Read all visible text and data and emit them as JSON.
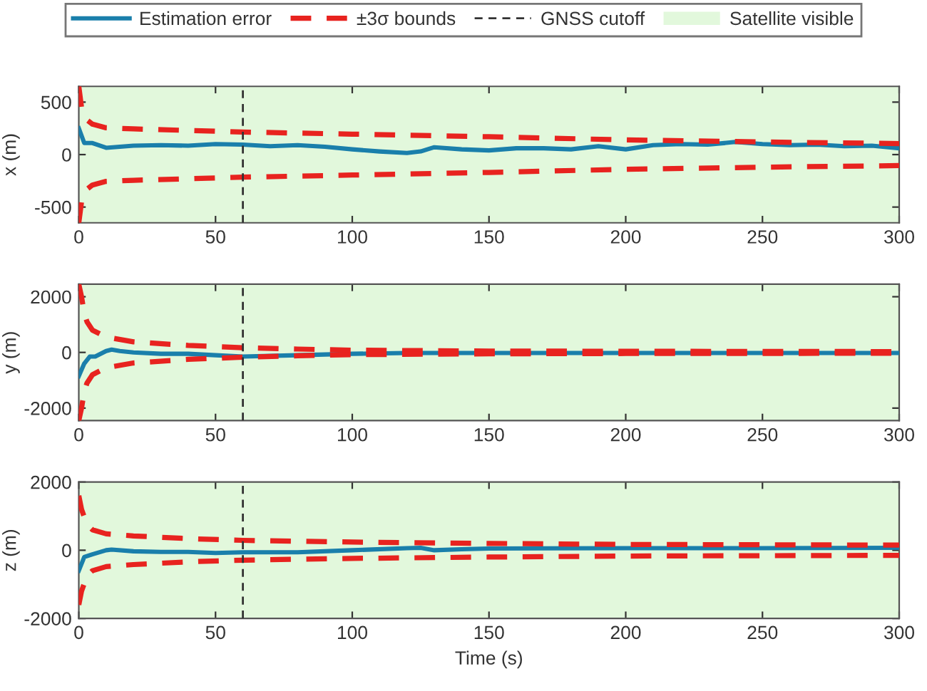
{
  "chart_data": [
    {
      "type": "line",
      "ylabel": "x (m)",
      "xlim": [
        0,
        300
      ],
      "xticks": [
        0,
        50,
        100,
        150,
        200,
        250,
        300
      ],
      "ylim": [
        -650,
        650
      ],
      "yticks": [
        -500,
        0,
        500
      ],
      "legend": "top",
      "series": [
        {
          "name": "Estimation error",
          "color": "#1a7fab",
          "line_style": "solid",
          "x": [
            0,
            2,
            5,
            10,
            20,
            30,
            40,
            50,
            60,
            70,
            80,
            90,
            100,
            110,
            120,
            125,
            130,
            140,
            150,
            160,
            170,
            180,
            190,
            200,
            210,
            220,
            230,
            240,
            250,
            260,
            270,
            280,
            290,
            300
          ],
          "values": [
            250,
            110,
            110,
            65,
            85,
            90,
            85,
            100,
            95,
            80,
            90,
            75,
            50,
            30,
            15,
            30,
            70,
            50,
            40,
            60,
            60,
            50,
            80,
            50,
            90,
            100,
            95,
            120,
            100,
            90,
            95,
            80,
            85,
            60
          ]
        },
        {
          "name": "±3σ bounds",
          "color": "#e8231f",
          "line_style": "dashed",
          "x": [
            0,
            1,
            3,
            5,
            10,
            20,
            40,
            60,
            100,
            150,
            200,
            250,
            300
          ],
          "values": [
            650,
            450,
            330,
            290,
            255,
            245,
            230,
            215,
            195,
            170,
            140,
            120,
            105
          ]
        },
        {
          "color": "#e8231f",
          "line_style": "dashed",
          "x": [
            0,
            1,
            3,
            5,
            10,
            20,
            40,
            60,
            100,
            150,
            200,
            250,
            300
          ],
          "values": [
            -650,
            -450,
            -330,
            -290,
            -255,
            -245,
            -230,
            -215,
            -195,
            -170,
            -140,
            -120,
            -105
          ]
        }
      ],
      "ref_lines": [
        {
          "axis": "x",
          "value": 60,
          "label": "GNSS cutoff",
          "color": "#333333",
          "line_style": "dashed"
        }
      ],
      "bands": [
        {
          "axis": "x",
          "from": 0,
          "to": 300,
          "label": "Satellite visible",
          "color": "#e2f8dc"
        }
      ]
    },
    {
      "type": "line",
      "ylabel": "y (m)",
      "xlim": [
        0,
        300
      ],
      "xticks": [
        0,
        50,
        100,
        150,
        200,
        250,
        300
      ],
      "ylim": [
        -2450,
        2450
      ],
      "yticks": [
        -2000,
        0,
        2000
      ],
      "series": [
        {
          "color": "#1a7fab",
          "line_style": "solid",
          "x": [
            0,
            2,
            4,
            6,
            10,
            12,
            15,
            20,
            30,
            40,
            50,
            60,
            80,
            100,
            120,
            150,
            200,
            250,
            300
          ],
          "values": [
            -850,
            -400,
            -150,
            -150,
            50,
            100,
            50,
            0,
            -50,
            -50,
            -100,
            -150,
            -100,
            -50,
            -20,
            -20,
            -20,
            -20,
            -20
          ]
        },
        {
          "color": "#e8231f",
          "line_style": "dashed",
          "x": [
            0,
            1,
            2,
            3,
            5,
            10,
            20,
            40,
            60,
            80,
            100,
            150,
            200,
            300
          ],
          "values": [
            2450,
            2000,
            1400,
            1100,
            800,
            550,
            380,
            250,
            170,
            120,
            80,
            50,
            40,
            30
          ]
        },
        {
          "color": "#e8231f",
          "line_style": "dashed",
          "x": [
            0,
            1,
            2,
            3,
            5,
            10,
            20,
            40,
            60,
            80,
            100,
            150,
            200,
            300
          ],
          "values": [
            -2450,
            -2000,
            -1400,
            -1100,
            -800,
            -550,
            -380,
            -250,
            -170,
            -120,
            -80,
            -50,
            -40,
            -30
          ]
        }
      ],
      "ref_lines": [
        {
          "axis": "x",
          "value": 60,
          "color": "#333333",
          "line_style": "dashed"
        }
      ],
      "bands": [
        {
          "axis": "x",
          "from": 0,
          "to": 300,
          "color": "#e2f8dc"
        }
      ]
    },
    {
      "type": "line",
      "ylabel": "z (m)",
      "xlabel": "Time (s)",
      "xlim": [
        0,
        300
      ],
      "xticks": [
        0,
        50,
        100,
        150,
        200,
        250,
        300
      ],
      "ylim": [
        -2000,
        2000
      ],
      "yticks": [
        -2000,
        0,
        2000
      ],
      "series": [
        {
          "color": "#1a7fab",
          "line_style": "solid",
          "x": [
            0,
            2,
            5,
            10,
            12,
            20,
            30,
            40,
            50,
            60,
            80,
            100,
            120,
            125,
            130,
            140,
            150,
            200,
            250,
            300
          ],
          "values": [
            -600,
            -200,
            -120,
            0,
            20,
            -30,
            -50,
            -50,
            -80,
            -60,
            -60,
            0,
            60,
            70,
            0,
            30,
            50,
            60,
            60,
            70
          ]
        },
        {
          "color": "#e8231f",
          "line_style": "dashed",
          "x": [
            0,
            1,
            3,
            5,
            10,
            20,
            40,
            60,
            100,
            150,
            200,
            300
          ],
          "values": [
            1600,
            1200,
            750,
            600,
            480,
            420,
            340,
            290,
            240,
            200,
            170,
            150
          ]
        },
        {
          "color": "#e8231f",
          "line_style": "dashed",
          "x": [
            0,
            1,
            3,
            5,
            10,
            20,
            40,
            60,
            100,
            150,
            200,
            300
          ],
          "values": [
            -1600,
            -1200,
            -750,
            -600,
            -480,
            -420,
            -340,
            -290,
            -240,
            -200,
            -170,
            -150
          ]
        }
      ],
      "ref_lines": [
        {
          "axis": "x",
          "value": 60,
          "color": "#333333",
          "line_style": "dashed"
        }
      ],
      "bands": [
        {
          "axis": "x",
          "from": 0,
          "to": 300,
          "color": "#e2f8dc"
        }
      ]
    }
  ]
}
